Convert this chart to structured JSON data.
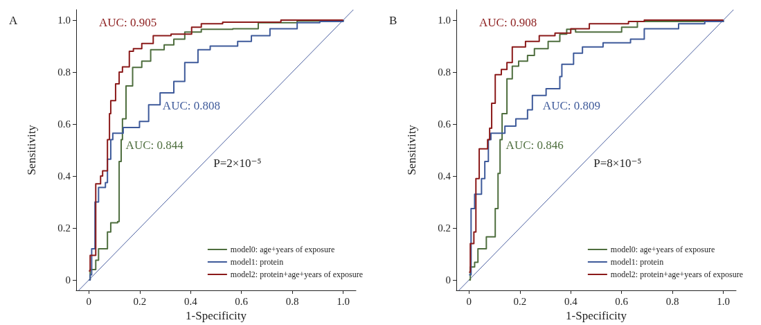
{
  "chart_data": [
    {
      "type": "step",
      "title": "A",
      "xlabel": "1-Specificity",
      "ylabel": "Sensitivity",
      "xlim": [
        -0.05,
        1.05
      ],
      "ylim": [
        -0.04,
        1.04
      ],
      "xticks": [
        0,
        0.2,
        0.4,
        0.6,
        0.8,
        {
          "value": 1,
          "label": "1.0"
        }
      ],
      "yticks": [
        0,
        0.2,
        0.4,
        0.6,
        0.8,
        {
          "value": 1,
          "label": "1.0"
        }
      ],
      "grid": false,
      "legend": "bottom right",
      "marker": "none",
      "line_style": "solid",
      "annotations": [
        "AUC: 0.844",
        "AUC: 0.808",
        "AUC: 0.905",
        "P=2×10⁻⁵"
      ],
      "series": [
        {
          "name": "model0: age+years of exposure",
          "color": "#4e6e3e",
          "x": [
            0,
            0.005,
            0.024,
            0.027,
            0.038,
            0.073,
            0.086,
            0.113,
            0.119,
            0.127,
            0.132,
            0.146,
            0.172,
            0.208,
            0.243,
            0.296,
            0.334,
            0.377,
            0.442,
            0.566,
            0.666,
            0.819,
            1.0
          ],
          "values": [
            0,
            0.04,
            0.04,
            0.076,
            0.12,
            0.185,
            0.22,
            0.225,
            0.456,
            0.54,
            0.62,
            0.747,
            0.818,
            0.842,
            0.886,
            0.905,
            0.927,
            0.954,
            0.965,
            0.967,
            0.99,
            0.997,
            1.0
          ]
        },
        {
          "name": "model1: protein",
          "color": "#3e5a9a",
          "x": [
            0,
            0.005,
            0.011,
            0.024,
            0.038,
            0.065,
            0.073,
            0.086,
            0.094,
            0.135,
            0.199,
            0.235,
            0.28,
            0.334,
            0.377,
            0.429,
            0.477,
            0.585,
            0.639,
            0.712,
            0.819,
            0.908,
            1.0
          ],
          "values": [
            0,
            0.02,
            0.12,
            0.3,
            0.356,
            0.375,
            0.465,
            0.54,
            0.565,
            0.587,
            0.61,
            0.674,
            0.72,
            0.764,
            0.837,
            0.886,
            0.9,
            0.918,
            0.94,
            0.967,
            0.99,
            0.995,
            1.0
          ]
        },
        {
          "name": "model2: protein+age+years of exposure",
          "color": "#8b1a1a",
          "x": [
            0,
            0.005,
            0.027,
            0.046,
            0.054,
            0.073,
            0.081,
            0.086,
            0.105,
            0.119,
            0.132,
            0.159,
            0.175,
            0.208,
            0.253,
            0.323,
            0.404,
            0.442,
            0.526,
            0.755,
            1.0
          ],
          "values": [
            0.035,
            0.095,
            0.37,
            0.4,
            0.42,
            0.54,
            0.64,
            0.69,
            0.755,
            0.8,
            0.82,
            0.88,
            0.89,
            0.91,
            0.94,
            0.946,
            0.973,
            0.986,
            0.992,
            1.0,
            1.0
          ]
        },
        {
          "type": "line",
          "color": "#4a5fa0",
          "x": [
            -0.04,
            1.04
          ],
          "values": [
            -0.04,
            1.04
          ]
        }
      ]
    },
    {
      "type": "step",
      "title": "B",
      "xlabel": "1-Specificity",
      "ylabel": "Sensitivity",
      "xlim": [
        -0.05,
        1.05
      ],
      "ylim": [
        -0.04,
        1.04
      ],
      "xticks": [
        0,
        0.2,
        0.4,
        0.6,
        0.8,
        {
          "value": 1,
          "label": "1.0"
        }
      ],
      "yticks": [
        0,
        0.2,
        0.4,
        0.6,
        0.8,
        {
          "value": 1,
          "label": "1.0"
        }
      ],
      "grid": false,
      "legend": "bottom right",
      "marker": "none",
      "line_style": "solid",
      "annotations": [
        "AUC: 0.846",
        "AUC: 0.809",
        "AUC: 0.908",
        "P=8×10⁻⁵"
      ],
      "series": [
        {
          "name": "model0: age+years of exposure",
          "color": "#4e6e3e",
          "x": [
            0,
            0.005,
            0.022,
            0.035,
            0.068,
            0.103,
            0.114,
            0.122,
            0.13,
            0.149,
            0.17,
            0.195,
            0.23,
            0.257,
            0.311,
            0.357,
            0.384,
            0.419,
            0.6,
            0.662,
            1.0
          ],
          "values": [
            0,
            0.05,
            0.068,
            0.12,
            0.166,
            0.275,
            0.41,
            0.54,
            0.64,
            0.774,
            0.823,
            0.842,
            0.864,
            0.89,
            0.918,
            0.946,
            0.965,
            0.954,
            0.973,
            0.995,
            0.997
          ]
        },
        {
          "name": "model1: protein",
          "color": "#3e5a9a",
          "x": [
            0,
            0.008,
            0.022,
            0.049,
            0.062,
            0.076,
            0.086,
            0.141,
            0.184,
            0.23,
            0.249,
            0.303,
            0.357,
            0.365,
            0.411,
            0.446,
            0.527,
            0.635,
            0.689,
            0.824,
            0.927,
            1.0
          ],
          "values": [
            0.02,
            0.275,
            0.33,
            0.39,
            0.456,
            0.54,
            0.565,
            0.592,
            0.62,
            0.655,
            0.71,
            0.736,
            0.783,
            0.83,
            0.873,
            0.897,
            0.913,
            0.927,
            0.967,
            0.986,
            0.995,
            1.0
          ]
        },
        {
          "name": "model2: protein+age+years of exposure",
          "color": "#8b1a1a",
          "x": [
            0,
            0.005,
            0.019,
            0.027,
            0.04,
            0.073,
            0.081,
            0.089,
            0.103,
            0.127,
            0.149,
            0.17,
            0.222,
            0.276,
            0.338,
            0.4,
            0.473,
            0.627,
            0.689,
            1.0
          ],
          "values": [
            0.03,
            0.14,
            0.185,
            0.39,
            0.505,
            0.54,
            0.584,
            0.68,
            0.79,
            0.81,
            0.837,
            0.897,
            0.918,
            0.94,
            0.95,
            0.967,
            0.986,
            0.995,
            1.0,
            1.0
          ]
        },
        {
          "type": "line",
          "color": "#4a5fa0",
          "x": [
            -0.04,
            1.04
          ],
          "values": [
            -0.04,
            1.04
          ]
        }
      ]
    }
  ]
}
